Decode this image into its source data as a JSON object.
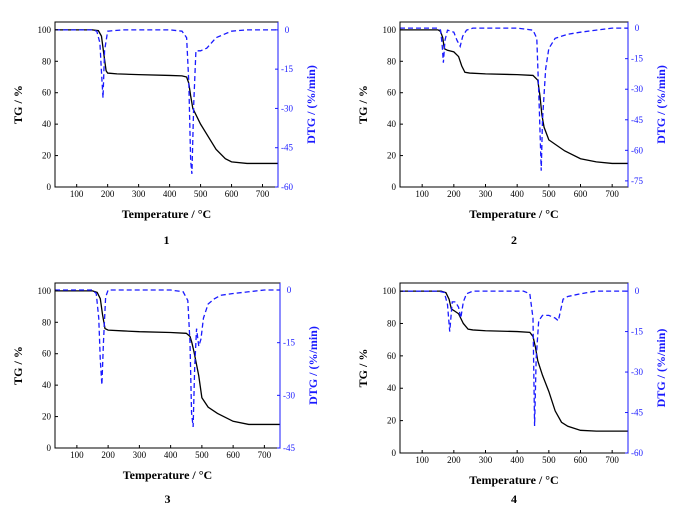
{
  "chart_data": [
    {
      "type": "line",
      "panel_label": "1",
      "xlabel": "Temperature / °C",
      "ylabel": "TG / %",
      "y2label": "DTG / (%/min)",
      "xlim": [
        30,
        750
      ],
      "xticks": [
        "100",
        "200",
        "300",
        "400",
        "500",
        "600",
        "700"
      ],
      "xtick_values": [
        100,
        200,
        300,
        400,
        500,
        600,
        700
      ],
      "ylim": [
        0,
        105
      ],
      "yticks": [
        "0",
        "20",
        "40",
        "60",
        "80",
        "100"
      ],
      "ytick_values": [
        0,
        20,
        40,
        60,
        80,
        100
      ],
      "y2lim": [
        -60,
        3
      ],
      "y2ticks": [
        "0",
        "-15",
        "-30",
        "-45",
        "-60"
      ],
      "y2tick_values": [
        0,
        -15,
        -30,
        -45,
        -60
      ],
      "series": [
        {
          "axis": "left",
          "color": "#000000",
          "style": "solid",
          "x": [
            30,
            150,
            170,
            180,
            188,
            195,
            200,
            230,
            300,
            400,
            440,
            455,
            462,
            468,
            475,
            500,
            550,
            580,
            600,
            650,
            700,
            750
          ],
          "y": [
            100,
            100,
            99.5,
            96,
            84,
            74,
            72.5,
            72,
            71.5,
            71,
            70.7,
            70,
            66,
            58,
            50,
            40,
            24,
            18,
            16,
            15,
            15,
            15
          ]
        },
        {
          "axis": "right",
          "color": "#1a1aff",
          "style": "dashed",
          "x": [
            30,
            150,
            165,
            175,
            180,
            185,
            190,
            200,
            250,
            400,
            440,
            455,
            462,
            468,
            472,
            478,
            485,
            500,
            520,
            550,
            600,
            650,
            750
          ],
          "y": [
            0,
            0,
            -0.5,
            -5,
            -16,
            -26,
            -8,
            -0.5,
            0,
            0,
            -0.5,
            -3,
            -20,
            -50,
            -55,
            -28,
            -8,
            -8,
            -7,
            -3,
            -0.5,
            0,
            0
          ]
        }
      ]
    },
    {
      "type": "line",
      "panel_label": "2",
      "xlabel": "Temperature / °C",
      "ylabel": "TG / %",
      "y2label": "DTG / (%/min)",
      "xlim": [
        30,
        750
      ],
      "xticks": [
        "100",
        "200",
        "300",
        "400",
        "500",
        "600",
        "700"
      ],
      "xtick_values": [
        100,
        200,
        300,
        400,
        500,
        600,
        700
      ],
      "ylim": [
        0,
        105
      ],
      "yticks": [
        "0",
        "20",
        "40",
        "60",
        "80",
        "100"
      ],
      "ytick_values": [
        0,
        20,
        40,
        60,
        80,
        100
      ],
      "y2lim": [
        -78,
        3
      ],
      "y2ticks": [
        "0",
        "-15",
        "-30",
        "-45",
        "-60",
        "-75"
      ],
      "y2tick_values": [
        0,
        -15,
        -30,
        -45,
        -60,
        -75
      ],
      "series": [
        {
          "axis": "left",
          "color": "#000000",
          "style": "solid",
          "x": [
            30,
            150,
            158,
            165,
            170,
            180,
            200,
            215,
            225,
            235,
            250,
            300,
            400,
            450,
            465,
            472,
            478,
            485,
            500,
            550,
            600,
            650,
            700,
            750
          ],
          "y": [
            100,
            100,
            99,
            95,
            88,
            87,
            86,
            83,
            77,
            73,
            72.5,
            72,
            71.5,
            71,
            68,
            58,
            46,
            38,
            30,
            23,
            18,
            16,
            15,
            15
          ]
        },
        {
          "axis": "right",
          "color": "#1a1aff",
          "style": "dashed",
          "x": [
            30,
            150,
            158,
            163,
            167,
            172,
            180,
            200,
            210,
            220,
            228,
            240,
            260,
            400,
            450,
            462,
            470,
            476,
            480,
            490,
            500,
            520,
            560,
            600,
            650,
            700,
            750
          ],
          "y": [
            0,
            0,
            -1,
            -8,
            -17,
            -6,
            -1,
            -2,
            -6,
            -9,
            -4,
            -1,
            0,
            0,
            -1,
            -5,
            -40,
            -70,
            -45,
            -20,
            -10,
            -5,
            -3,
            -2,
            -1,
            0,
            0
          ]
        }
      ]
    },
    {
      "type": "line",
      "panel_label": "3",
      "xlabel": "Temperature / °C",
      "ylabel": "TG / %",
      "y2label": "DTG / (%/min)",
      "xlim": [
        30,
        750
      ],
      "xticks": [
        "100",
        "200",
        "300",
        "400",
        "500",
        "600",
        "700"
      ],
      "xtick_values": [
        100,
        200,
        300,
        400,
        500,
        600,
        700
      ],
      "ylim": [
        0,
        105
      ],
      "yticks": [
        "0",
        "20",
        "40",
        "60",
        "80",
        "100"
      ],
      "ytick_values": [
        0,
        20,
        40,
        60,
        80,
        100
      ],
      "y2lim": [
        -45,
        2
      ],
      "y2ticks": [
        "0",
        "-15",
        "-30",
        "-45"
      ],
      "y2tick_values": [
        0,
        -15,
        -30,
        -45
      ],
      "series": [
        {
          "axis": "left",
          "color": "#000000",
          "style": "solid",
          "x": [
            30,
            150,
            165,
            175,
            182,
            190,
            200,
            250,
            300,
            400,
            450,
            462,
            468,
            475,
            482,
            490,
            500,
            520,
            550,
            600,
            650,
            700,
            750
          ],
          "y": [
            100,
            100,
            99,
            95,
            85,
            76,
            75,
            74.5,
            74,
            73.5,
            73,
            71,
            67,
            61,
            54,
            46,
            32,
            26,
            22,
            17,
            15,
            15,
            15
          ]
        },
        {
          "axis": "right",
          "color": "#1a1aff",
          "style": "dashed",
          "x": [
            30,
            150,
            162,
            170,
            175,
            180,
            185,
            192,
            200,
            250,
            400,
            440,
            455,
            462,
            467,
            472,
            477,
            483,
            490,
            497,
            505,
            520,
            540,
            560,
            600,
            650,
            700,
            750
          ],
          "y": [
            0,
            0,
            -1,
            -8,
            -20,
            -27,
            -15,
            -2,
            0,
            0,
            0,
            -0.5,
            -3,
            -15,
            -35,
            -39,
            -22,
            -11,
            -16,
            -14,
            -8,
            -4,
            -2.5,
            -1.5,
            -1,
            -0.5,
            0,
            0
          ]
        }
      ]
    },
    {
      "type": "line",
      "panel_label": "4",
      "xlabel": "Temperature / °C",
      "ylabel": "TG / %",
      "y2label": "DTG / (%/min)",
      "xlim": [
        30,
        750
      ],
      "xticks": [
        "100",
        "200",
        "300",
        "400",
        "500",
        "600",
        "700"
      ],
      "xtick_values": [
        100,
        200,
        300,
        400,
        500,
        600,
        700
      ],
      "ylim": [
        0,
        105
      ],
      "yticks": [
        "0",
        "20",
        "40",
        "60",
        "80",
        "100"
      ],
      "ytick_values": [
        0,
        20,
        40,
        60,
        80,
        100
      ],
      "y2lim": [
        -60,
        3
      ],
      "y2ticks": [
        "0",
        "-15",
        "-30",
        "-45",
        "-60"
      ],
      "y2tick_values": [
        0,
        -15,
        -30,
        -45,
        -60
      ],
      "series": [
        {
          "axis": "left",
          "color": "#000000",
          "style": "solid",
          "x": [
            30,
            160,
            175,
            185,
            192,
            200,
            215,
            230,
            245,
            260,
            300,
            400,
            440,
            450,
            458,
            465,
            480,
            500,
            520,
            540,
            560,
            600,
            650,
            700,
            750
          ],
          "y": [
            100,
            100,
            99,
            95,
            89,
            88,
            86,
            80,
            76.5,
            76,
            75.5,
            75,
            74.5,
            72,
            65,
            57,
            48,
            38,
            26,
            19,
            16.5,
            14,
            13.5,
            13.5,
            13.5
          ]
        },
        {
          "axis": "right",
          "color": "#1a1aff",
          "style": "dashed",
          "x": [
            30,
            150,
            170,
            180,
            187,
            195,
            205,
            215,
            222,
            230,
            240,
            260,
            300,
            420,
            440,
            450,
            455,
            460,
            468,
            480,
            500,
            520,
            530,
            545,
            560,
            600,
            650,
            700,
            750
          ],
          "y": [
            0,
            0,
            -0.5,
            -5,
            -15,
            -4,
            -4,
            -6,
            -10,
            -4,
            -1,
            0,
            0,
            0,
            -1,
            -10,
            -50,
            -25,
            -11,
            -9,
            -9,
            -10,
            -11,
            -3,
            -2,
            -1,
            0,
            0,
            0
          ]
        }
      ]
    }
  ]
}
